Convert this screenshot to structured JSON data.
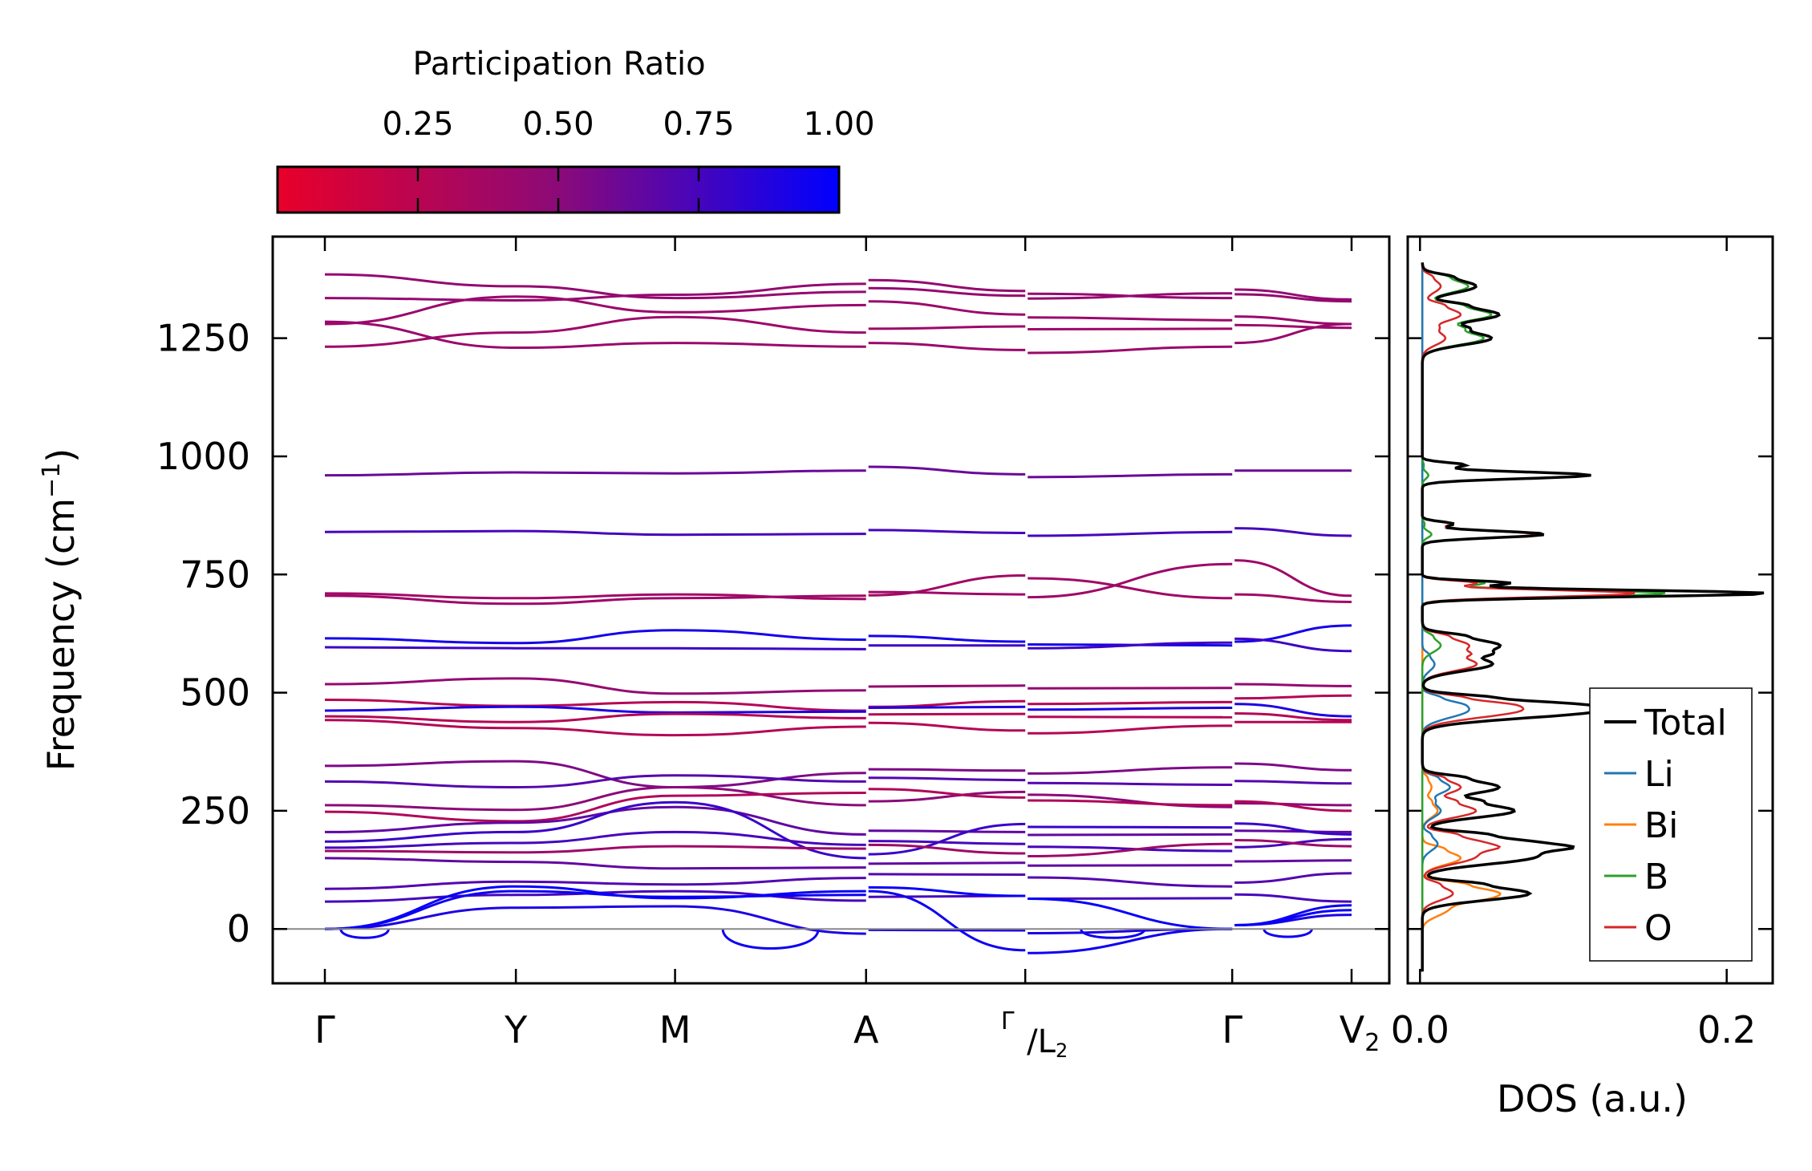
{
  "chart_data": [
    {
      "type": "line",
      "panel": "phonon-dispersion",
      "ylabel": "Frequency (cm",
      "ylabel_sup": "−1",
      "ylabel_close": ")",
      "ylim": [
        -115,
        1465
      ],
      "yticks": [
        0,
        250,
        500,
        750,
        1000,
        1250
      ],
      "ytick_labels": [
        "0",
        "250",
        "500",
        "750",
        "1000",
        "1250"
      ],
      "k_labels": [
        "Γ",
        "Y",
        "M",
        "A",
        "Γ",
        "/L",
        "2",
        "Γ",
        "V",
        "2"
      ],
      "k_label_text": [
        "Γ",
        "Y",
        "M",
        "A",
        "Γ/L2",
        "Γ",
        "V2"
      ],
      "k_positions": [
        0.0,
        1.2,
        2.2,
        3.4,
        4.4,
        5.7,
        6.45
      ],
      "segment_breaks": [
        3.4,
        4.4,
        5.7
      ],
      "zero_line": 0,
      "colorbar": {
        "title": "Participation Ratio",
        "range": [
          0.0,
          1.0
        ],
        "ticks": [
          0.25,
          0.5,
          0.75,
          1.0
        ],
        "tick_labels": [
          "0.25",
          "0.50",
          "0.75",
          "1.00"
        ],
        "color_low": "#e8002a",
        "color_mid": "#8b0a78",
        "color_high": "#0000ff"
      },
      "bands": [
        {
          "y": [
            1385,
            1360,
            1335,
            1348,
            1340,
            1345,
            1332
          ],
          "pr": 0.45
        },
        {
          "y": [
            1335,
            1330,
            1342,
            1365,
            1350,
            1335,
            1328
          ],
          "pr": 0.45
        },
        {
          "y": [
            1280,
            1338,
            1305,
            1320,
            1300,
            1288,
            1280
          ],
          "pr": 0.42
        },
        {
          "y": [
            1232,
            1262,
            1295,
            1262,
            1275,
            1270,
            1272
          ],
          "pr": 0.4
        },
        {
          "y": [
            1285,
            1230,
            1240,
            1232,
            1225,
            1232,
            1280
          ],
          "pr": 0.42
        },
        {
          "y": [
            960,
            966,
            964,
            970,
            962,
            962,
            970
          ],
          "pr": 0.62
        },
        {
          "y": [
            840,
            842,
            834,
            836,
            838,
            840,
            832
          ],
          "pr": 0.75
        },
        {
          "y": [
            710,
            700,
            708,
            698,
            748,
            700,
            692
          ],
          "pr": 0.38
        },
        {
          "y": [
            705,
            688,
            700,
            705,
            708,
            772,
            705
          ],
          "pr": 0.4
        },
        {
          "y": [
            615,
            605,
            632,
            612,
            608,
            600,
            642
          ],
          "pr": 0.92
        },
        {
          "y": [
            596,
            594,
            594,
            592,
            600,
            606,
            588
          ],
          "pr": 0.78
        },
        {
          "y": [
            518,
            530,
            498,
            505,
            515,
            510,
            514
          ],
          "pr": 0.45
        },
        {
          "y": [
            485,
            472,
            480,
            462,
            482,
            480,
            494
          ],
          "pr": 0.28
        },
        {
          "y": [
            462,
            470,
            458,
            460,
            470,
            468,
            450
          ],
          "pr": 0.9
        },
        {
          "y": [
            450,
            438,
            455,
            446,
            455,
            448,
            442
          ],
          "pr": 0.28
        },
        {
          "y": [
            442,
            425,
            410,
            428,
            420,
            430,
            438
          ],
          "pr": 0.28
        },
        {
          "y": [
            345,
            355,
            300,
            330,
            335,
            342,
            336
          ],
          "pr": 0.55
        },
        {
          "y": [
            312,
            300,
            325,
            312,
            315,
            305,
            308
          ],
          "pr": 0.7
        },
        {
          "y": [
            262,
            252,
            300,
            262,
            290,
            258,
            262
          ],
          "pr": 0.5
        },
        {
          "y": [
            248,
            228,
            282,
            288,
            278,
            262,
            250
          ],
          "pr": 0.3
        },
        {
          "y": [
            205,
            225,
            258,
            200,
            205,
            200,
            205
          ],
          "pr": 0.65
        },
        {
          "y": [
            185,
            205,
            268,
            150,
            222,
            215,
            200
          ],
          "pr": 0.8
        },
        {
          "y": [
            172,
            182,
            205,
            178,
            180,
            165,
            190
          ],
          "pr": 0.75
        },
        {
          "y": [
            165,
            162,
            175,
            170,
            160,
            180,
            175
          ],
          "pr": 0.4
        },
        {
          "y": [
            150,
            142,
            128,
            130,
            140,
            135,
            145
          ],
          "pr": 0.65
        },
        {
          "y": [
            85,
            100,
            94,
            108,
            115,
            90,
            118
          ],
          "pr": 0.7
        },
        {
          "y": [
            58,
            72,
            80,
            60,
            70,
            65,
            58
          ],
          "pr": 0.75
        }
      ],
      "acoustic": [
        {
          "y": [
            0,
            45,
            48,
            -10,
            -3,
            0,
            30
          ],
          "pr": 0.9
        },
        {
          "y": [
            0,
            80,
            68,
            72,
            -45,
            0,
            50
          ],
          "pr": 0.95
        },
        {
          "y": [
            0,
            90,
            65,
            80,
            70,
            0,
            40
          ],
          "pr": 0.98
        }
      ]
    },
    {
      "type": "line",
      "panel": "density-of-states",
      "xlabel": "DOS (a.u.)",
      "xlim": [
        -0.008,
        0.23
      ],
      "xticks": [
        0.0,
        0.2
      ],
      "xtick_labels": [
        "0.0",
        "0.2"
      ],
      "ylim": [
        -115,
        1465
      ],
      "legend_position": "lower-right",
      "series": [
        {
          "name": "Total",
          "color": "#000000"
        },
        {
          "name": "Li",
          "color": "#1f77b4"
        },
        {
          "name": "Bi",
          "color": "#ff7f0e"
        },
        {
          "name": "B",
          "color": "#2ca02c"
        },
        {
          "name": "O",
          "color": "#d62728"
        }
      ],
      "peaks": [
        {
          "series": "Total",
          "centers": [
            710,
            960,
            835,
            600,
            560,
            470,
            455,
            300,
            250,
            180,
            150,
            75,
            1250,
            1300,
            1360
          ],
          "heights": [
            0.225,
            0.11,
            0.08,
            0.05,
            0.045,
            0.075,
            0.06,
            0.05,
            0.06,
            0.075,
            0.065,
            0.07,
            0.045,
            0.05,
            0.035
          ]
        },
        {
          "series": "O",
          "centers": [
            710,
            960,
            835,
            600,
            560,
            470,
            455,
            300,
            250,
            180,
            150,
            75,
            1250,
            1300,
            1360
          ],
          "heights": [
            0.14,
            0.11,
            0.075,
            0.03,
            0.035,
            0.045,
            0.03,
            0.025,
            0.035,
            0.04,
            0.03,
            0.02,
            0.015,
            0.025,
            0.012
          ]
        },
        {
          "series": "B",
          "centers": [
            710,
            1250,
            1300,
            1360,
            600,
            835,
            960
          ],
          "heights": [
            0.16,
            0.04,
            0.045,
            0.03,
            0.012,
            0.006,
            0.004
          ]
        },
        {
          "series": "Bi",
          "centers": [
            75,
            150,
            40,
            250,
            300
          ],
          "heights": [
            0.05,
            0.025,
            0.015,
            0.01,
            0.006
          ]
        },
        {
          "series": "Li",
          "centers": [
            470,
            455,
            300,
            250,
            180,
            560
          ],
          "heights": [
            0.02,
            0.015,
            0.018,
            0.012,
            0.01,
            0.008
          ]
        }
      ]
    }
  ]
}
